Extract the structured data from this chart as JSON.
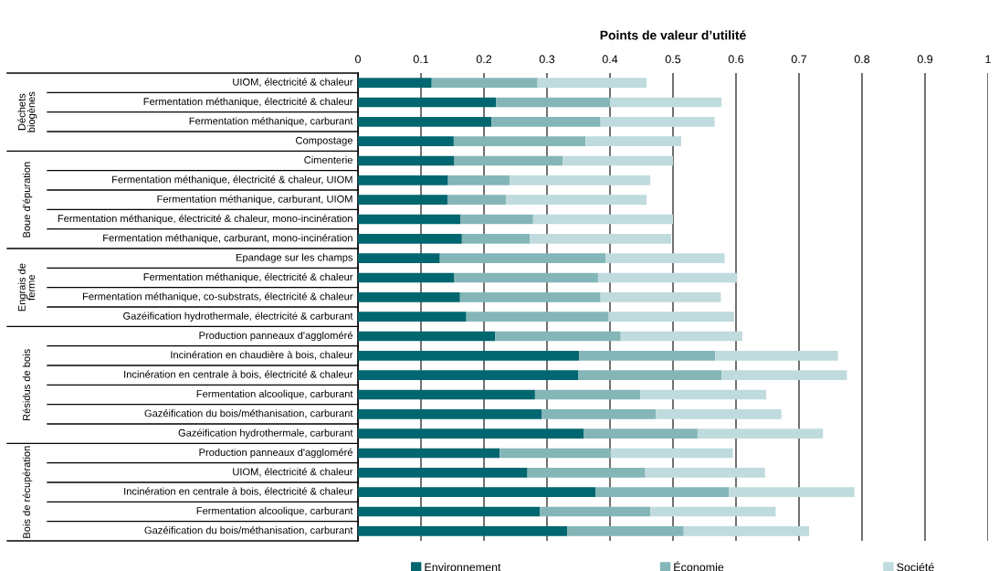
{
  "chart_data": {
    "type": "bar",
    "orientation": "horizontal",
    "stacked": true,
    "xlabel": "Points de valeur d’utilité",
    "categories": [
      "UIOM, électricité & chaleur",
      "Fermentation méthanique, électricité & chaleur",
      "Fermentation méthanique, carburant",
      "Compostage",
      "Cimenterie",
      "Fermentation méthanique, électricité & chaleur, UIOM",
      "Fermentation méthanique, carburant, UIOM",
      "Fermentation méthanique, électricité & chaleur, mono-incinération",
      "Fermentation méthanique, carburant, mono-incinération",
      "Epandage sur les champs",
      "Fermentation méthanique, électricité & chaleur",
      "Fermentation méthanique, co-substrats, électricité & chaleur",
      "Gazéification hydrothermale, électricité & carburant",
      "Production panneaux d'aggloméré",
      "Incinération en chaudière à bois, chaleur",
      "Incinération en centrale à bois, électricité & chaleur",
      "Fermentation alcoolique, carburant",
      "Gazéification du bois/méthanisation, carburant",
      "Gazéification hydrothermale, carburant",
      "Production panneaux d'aggloméré",
      "UIOM, électricité & chaleur",
      "Incinération en centrale à bois, électricité & chaleur",
      "Fermentation alcoolique, carburant",
      "Gazéification du bois/méthanisation, carburant"
    ],
    "series": [
      {
        "name": "Environnement",
        "color": "#00666f",
        "values": [
          0.117,
          0.219,
          0.212,
          0.152,
          0.153,
          0.143,
          0.142,
          0.163,
          0.165,
          0.13,
          0.153,
          0.162,
          0.172,
          0.218,
          0.351,
          0.35,
          0.281,
          0.292,
          0.358,
          0.225,
          0.269,
          0.377,
          0.289,
          0.332
        ]
      },
      {
        "name": "Économie",
        "color": "#84b6b8",
        "values": [
          0.168,
          0.181,
          0.173,
          0.209,
          0.172,
          0.098,
          0.093,
          0.115,
          0.108,
          0.263,
          0.228,
          0.223,
          0.226,
          0.199,
          0.216,
          0.227,
          0.167,
          0.181,
          0.181,
          0.176,
          0.187,
          0.212,
          0.175,
          0.185
        ]
      },
      {
        "name": "Société",
        "color": "#bfdbdd",
        "values": [
          0.173,
          0.177,
          0.181,
          0.152,
          0.175,
          0.223,
          0.223,
          0.222,
          0.224,
          0.189,
          0.221,
          0.191,
          0.199,
          0.193,
          0.195,
          0.199,
          0.2,
          0.199,
          0.199,
          0.194,
          0.19,
          0.199,
          0.199,
          0.199
        ]
      }
    ],
    "annotations": [
      "Déchets\nbiogènes",
      "Boue d'épuration",
      "Engrais de\nferme",
      "Résidus de bois",
      "Bois de récupération"
    ],
    "xlim": [
      0,
      1
    ],
    "xticks": [
      0,
      0.1,
      0.2,
      0.3,
      0.4,
      0.5,
      0.6,
      0.7,
      0.8,
      0.9,
      1
    ],
    "grid": "x",
    "legend": "bottom"
  }
}
